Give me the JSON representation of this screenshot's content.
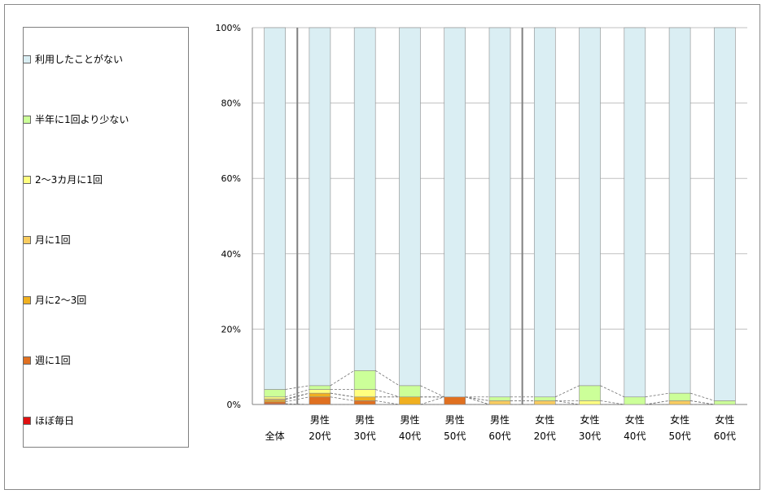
{
  "chart_data": {
    "type": "bar",
    "stacked": true,
    "percent": true,
    "categories": [
      [
        "全体",
        ""
      ],
      [
        "男性",
        "20代"
      ],
      [
        "男性",
        "30代"
      ],
      [
        "男性",
        "40代"
      ],
      [
        "男性",
        "50代"
      ],
      [
        "男性",
        "60代"
      ],
      [
        "女性",
        "20代"
      ],
      [
        "女性",
        "30代"
      ],
      [
        "女性",
        "40代"
      ],
      [
        "女性",
        "50代"
      ],
      [
        "女性",
        "60代"
      ]
    ],
    "series": [
      {
        "name": "ほぼ毎日",
        "color": "#e01010",
        "values": [
          0.2,
          0,
          0,
          0,
          0,
          0,
          0,
          0,
          0,
          0,
          0
        ]
      },
      {
        "name": "週に1回",
        "color": "#e07020",
        "values": [
          0.5,
          2,
          1,
          0,
          2,
          0,
          0,
          0,
          0,
          0,
          0
        ]
      },
      {
        "name": "月に2〜3回",
        "color": "#f0b020",
        "values": [
          0.5,
          1,
          1,
          2,
          0,
          0,
          0,
          0,
          0,
          0,
          0
        ]
      },
      {
        "name": "月に1回",
        "color": "#f8cc60",
        "values": [
          0.3,
          0,
          0,
          0,
          0,
          1,
          1,
          0,
          0,
          1,
          0
        ]
      },
      {
        "name": "2〜3カ月に1回",
        "color": "#ffff80",
        "values": [
          0.5,
          1,
          2,
          0,
          0,
          0,
          0,
          1,
          0,
          0,
          0
        ]
      },
      {
        "name": "半年に1回より少ない",
        "color": "#ccff99",
        "values": [
          2,
          1,
          5,
          3,
          0,
          1,
          1,
          4,
          2,
          2,
          1
        ]
      },
      {
        "name": "利用したことがない",
        "color": "#daeef3",
        "values": [
          96,
          95,
          91,
          95,
          98,
          98,
          98,
          95,
          98,
          97,
          99
        ]
      }
    ],
    "ylim": [
      0,
      100
    ],
    "yticks": [
      "0%",
      "20%",
      "40%",
      "60%",
      "80%",
      "100%"
    ],
    "gridlines": true,
    "legend_position": "left",
    "group_separators_after": [
      "全体",
      "男性 60代"
    ]
  }
}
